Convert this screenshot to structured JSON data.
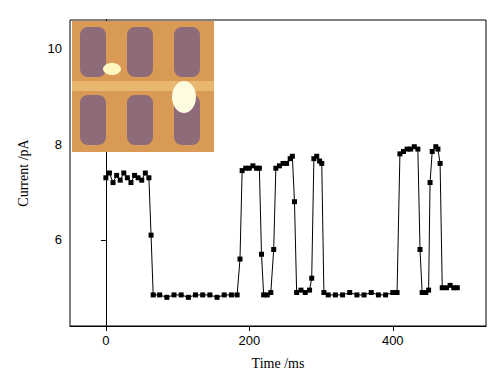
{
  "chart_data": {
    "type": "line",
    "xlabel": "Time /ms",
    "ylabel": "Current /pA",
    "x": [
      0,
      5,
      10,
      15,
      20,
      25,
      30,
      35,
      40,
      45,
      50,
      55,
      60,
      63,
      66,
      75,
      85,
      95,
      105,
      115,
      125,
      135,
      145,
      155,
      165,
      175,
      183,
      187,
      190,
      195,
      200,
      205,
      210,
      214,
      217,
      220,
      225,
      230,
      234,
      237,
      242,
      247,
      252,
      257,
      260,
      263,
      266,
      272,
      278,
      284,
      287,
      290,
      294,
      298,
      301,
      304,
      310,
      320,
      330,
      340,
      350,
      360,
      370,
      380,
      390,
      400,
      406,
      410,
      415,
      420,
      425,
      430,
      435,
      438,
      441,
      446,
      450,
      452,
      455,
      460,
      463,
      466,
      469,
      475,
      480,
      485,
      490
    ],
    "values": [
      7.3,
      7.4,
      7.2,
      7.35,
      7.25,
      7.4,
      7.3,
      7.2,
      7.35,
      7.3,
      7.25,
      7.4,
      7.3,
      6.1,
      4.85,
      4.85,
      4.8,
      4.85,
      4.85,
      4.8,
      4.85,
      4.85,
      4.85,
      4.8,
      4.85,
      4.85,
      4.85,
      5.6,
      7.45,
      7.5,
      7.5,
      7.55,
      7.5,
      7.5,
      5.7,
      4.85,
      4.85,
      4.9,
      5.8,
      7.5,
      7.55,
      7.6,
      7.6,
      7.7,
      7.75,
      6.8,
      4.9,
      4.95,
      4.9,
      4.95,
      5.2,
      7.7,
      7.75,
      7.65,
      7.6,
      4.9,
      4.85,
      4.85,
      4.85,
      4.9,
      4.85,
      4.85,
      4.9,
      4.85,
      4.85,
      4.9,
      4.9,
      7.8,
      7.85,
      7.9,
      7.9,
      7.95,
      7.9,
      5.8,
      4.9,
      4.9,
      4.95,
      7.2,
      7.85,
      7.95,
      7.9,
      7.6,
      5.0,
      5.0,
      5.05,
      5.0,
      5.0
    ],
    "color": "#000000",
    "marker": "square",
    "xlim": [
      -50,
      530
    ],
    "ylim": [
      4.2,
      10.6
    ],
    "xticks": [
      0,
      200,
      400
    ],
    "yticks": [
      6,
      8,
      10
    ],
    "grid": false
  }
}
